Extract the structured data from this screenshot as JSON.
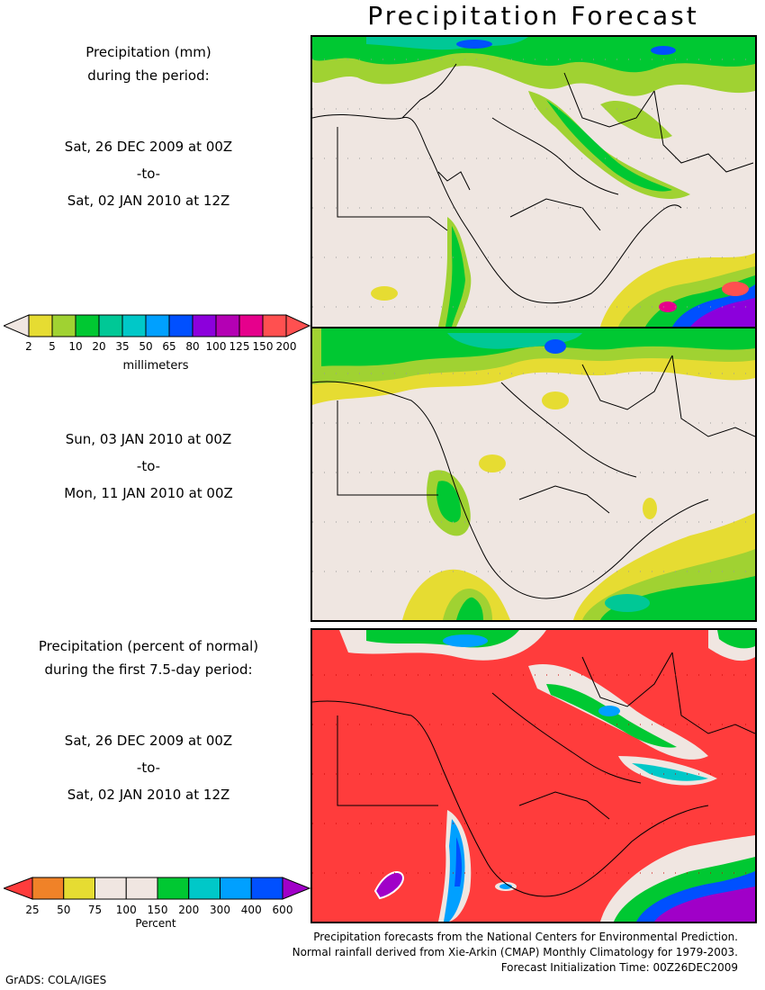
{
  "title": "Precipitation Forecast",
  "period1": {
    "heading_line1": "Precipitation (mm)",
    "heading_line2": "during the period:",
    "start": "Sat, 26 DEC 2009 at 00Z",
    "to": "-to-",
    "end": "Sat, 02 JAN 2010 at 12Z"
  },
  "period2": {
    "start": "Sun, 03 JAN 2010 at 00Z",
    "to": "-to-",
    "end": "Mon, 11 JAN 2010 at 00Z"
  },
  "period3": {
    "heading_line1": "Precipitation (percent of normal)",
    "heading_line2": "during the first 7.5-day period:",
    "start": "Sat, 26 DEC 2009 at 00Z",
    "to": "-to-",
    "end": "Sat, 02 JAN 2010 at 12Z"
  },
  "legend_mm": {
    "unit": "millimeters",
    "ticks": [
      "2",
      "5",
      "10",
      "20",
      "35",
      "50",
      "65",
      "80",
      "100",
      "125",
      "150",
      "200"
    ],
    "colors": [
      "#f0e6e1",
      "#e6dc32",
      "#a0d232",
      "#00c832",
      "#00c896",
      "#00c8c8",
      "#00a0ff",
      "#0050ff",
      "#8c00dc",
      "#b400b4",
      "#e6008c",
      "#ff5050",
      "#ff5050"
    ]
  },
  "legend_pct": {
    "unit": "Percent",
    "ticks": [
      "25",
      "50",
      "75",
      "100",
      "150",
      "200",
      "300",
      "400",
      "600"
    ],
    "colors": [
      "#ff3c3c",
      "#f08228",
      "#e6dc32",
      "#f0e6e1",
      "#f0e6e1",
      "#00c832",
      "#00c8c8",
      "#00a0ff",
      "#0050ff",
      "#a000c8"
    ]
  },
  "credits": {
    "line1": "Precipitation forecasts from the National Centers for Environmental Prediction.",
    "line2": "Normal rainfall derived from Xie-Arkin (CMAP) Monthly Climatology for 1979-2003.",
    "line3": "Forecast Initialization Time: 00Z26DEC2009"
  },
  "footer": "GrADS: COLA/IGES"
}
